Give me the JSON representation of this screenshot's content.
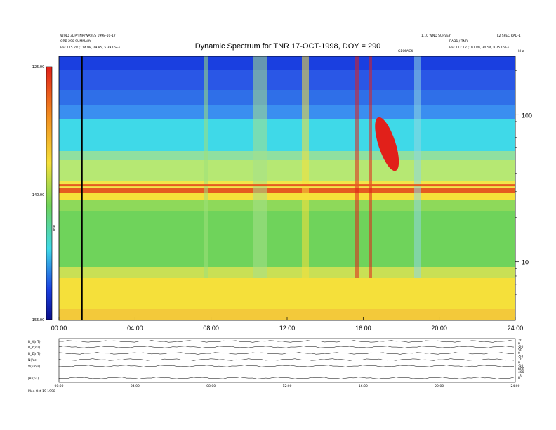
{
  "chart_data": {
    "type": "heatmap",
    "title": "Dynamic Spectrum for TNR 17-OCT-1998, DOY = 290",
    "xlabel": "",
    "ylabel": "",
    "colorbar_label": "TNR",
    "colorbar_ticks": [
      "-125.00",
      "-140.00",
      "-155.00"
    ],
    "colorbar_range": [
      -155,
      -125
    ],
    "x_ticks": [
      "00:00",
      "04:00",
      "08:00",
      "12:00",
      "16:00",
      "20:00",
      "24:00"
    ],
    "x_range_hours": [
      0,
      24
    ],
    "y_scale": "log",
    "y_ticks": [
      "100",
      "10"
    ],
    "y_unit": "kHz",
    "y_range_khz": [
      4,
      250
    ],
    "annotations": {
      "event_marker_hour": 1.2,
      "top_center_label": "GEOPACK",
      "header_left_line1": "WIND 3DP/TNR/WAVES 1998-10-17",
      "header_left_line2": "ORB 290 SUMMARY",
      "header_left_pos": "Pos   115.78 (114.98, 29.85, 5.39 GSE)",
      "header_right_line1": "1.10 WND SURVEY",
      "header_right_line2": "RAD1 / TNR",
      "header_right_line3": "L2 SPEC RAD-1",
      "header_right_pos": "Pos   112.12 (107.89, 30.54, 8.75 GSE)"
    },
    "features": [
      {
        "name": "background_low_freq_level",
        "value_dB": -145
      },
      {
        "name": "plasma_line_khz",
        "value": 33
      },
      {
        "name": "radio_burst_start_hour",
        "value": 16.8
      },
      {
        "name": "radio_burst_end_hour",
        "value": 17.7
      },
      {
        "name": "radio_burst_peak_dB",
        "value": -126
      }
    ]
  },
  "bottom_panel": {
    "traces": [
      "B_X(nT)",
      "B_Y(nT)",
      "B_Z(nT)",
      "N(/cc)",
      "V(km/s)",
      "|B|(nT)"
    ],
    "x_ticks": [
      "00:00",
      "04:00",
      "08:00",
      "12:00",
      "16:00",
      "20:00",
      "24:00"
    ],
    "right_ticks": [
      "20",
      "0",
      "-20",
      "50",
      "0",
      "-50",
      "10",
      "0",
      "-10",
      "600",
      "400",
      "10",
      "0"
    ],
    "footer_label": "Mon Oct 19 1998"
  },
  "colors": {
    "background": "#ffffff",
    "frame": "#000000",
    "spectrum_hot": "#e1201a",
    "spectrum_warm": "#f5e03a",
    "spectrum_mid": "#6fd35b",
    "spectrum_cool": "#3fd9e8",
    "spectrum_cold": "#1a3fe0"
  }
}
